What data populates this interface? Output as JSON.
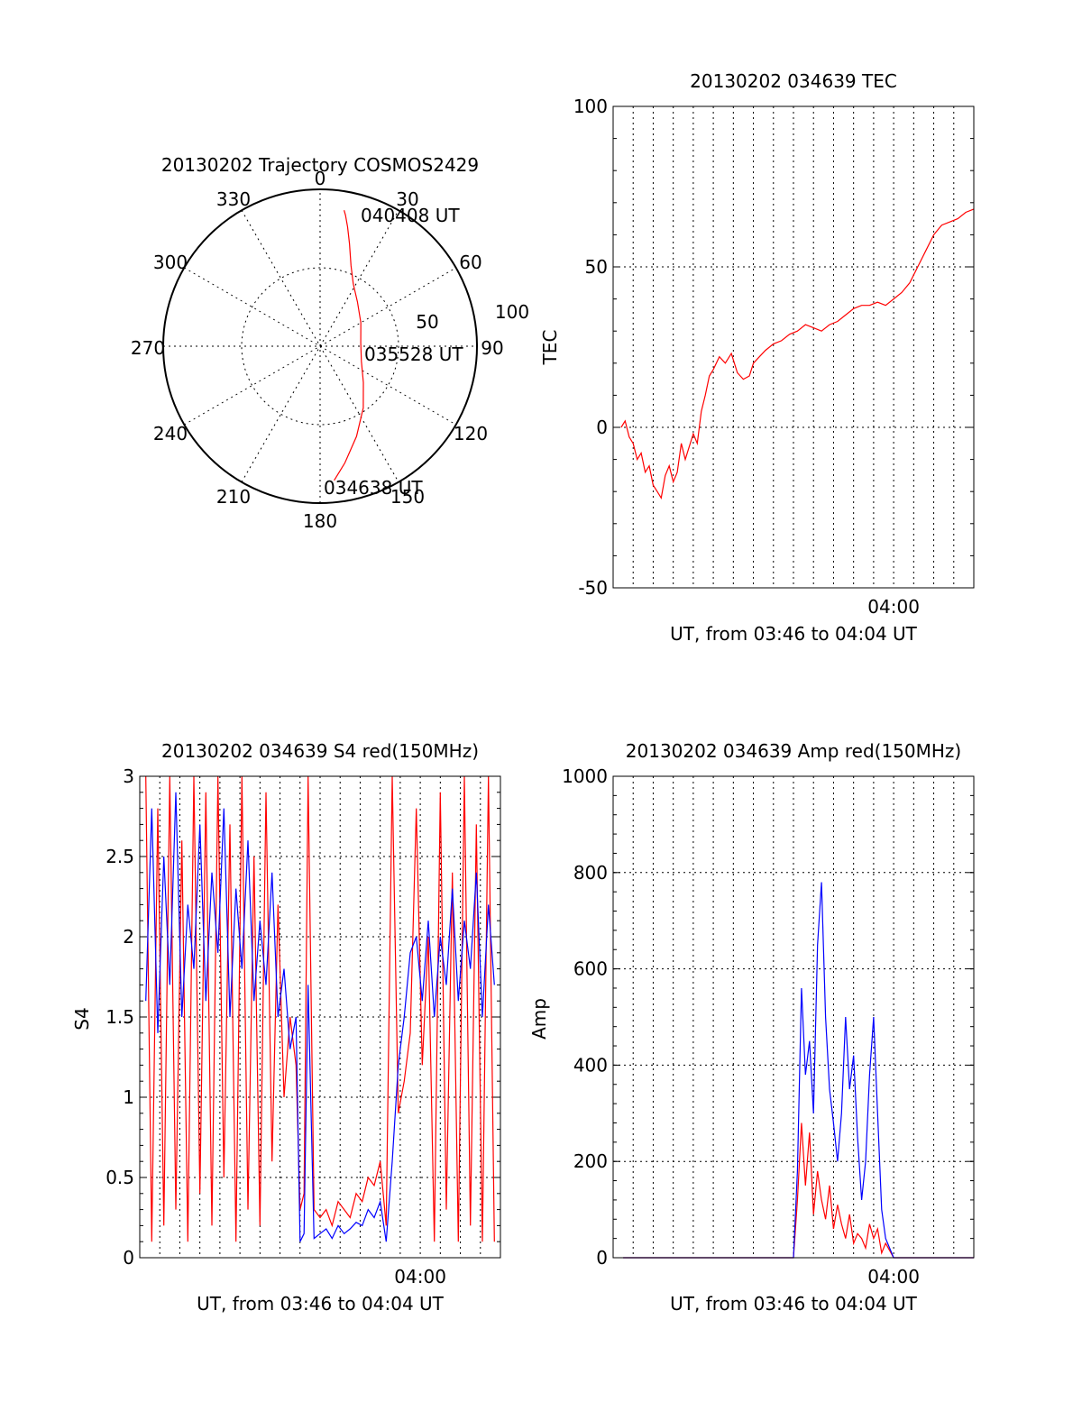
{
  "colors": {
    "red": "#ff0000",
    "blue": "#0000ff",
    "axis": "#000000",
    "grid": "#000000"
  },
  "chart_data": [
    {
      "type": "polar",
      "title": "20130202 Trajectory COSMOS2429",
      "azimuth_labels": [
        "0",
        "30",
        "60",
        "90",
        "120",
        "150",
        "180",
        "210",
        "240",
        "270",
        "300",
        "330"
      ],
      "radial_labels": [
        "50",
        "100"
      ],
      "r_max": 100,
      "grid": true,
      "series": [
        {
          "color": "red",
          "points": [
            {
              "az": 10,
              "r": 88
            },
            {
              "az": 11,
              "r": 85
            },
            {
              "az": 13,
              "r": 78
            },
            {
              "az": 16,
              "r": 68
            },
            {
              "az": 21,
              "r": 55
            },
            {
              "az": 28,
              "r": 45
            },
            {
              "az": 40,
              "r": 37
            },
            {
              "az": 60,
              "r": 30
            },
            {
              "az": 85,
              "r": 26
            },
            {
              "az": 110,
              "r": 28
            },
            {
              "az": 130,
              "r": 36
            },
            {
              "az": 145,
              "r": 48
            },
            {
              "az": 158,
              "r": 62
            },
            {
              "az": 168,
              "r": 76
            },
            {
              "az": 174,
              "r": 86
            }
          ]
        }
      ],
      "annotations": [
        {
          "text": "040408 UT"
        },
        {
          "text": "035528 UT"
        },
        {
          "text": "034638 UT"
        }
      ]
    },
    {
      "type": "line",
      "title": "20130202 034639 TEC",
      "xlabel": "UT, from 03:46 to 04:04 UT",
      "ylabel": "TEC",
      "xlim": [
        0,
        18
      ],
      "ylim": [
        -50,
        100
      ],
      "yticks": [
        -50,
        0,
        50,
        100
      ],
      "xtick_label": {
        "x": 14,
        "label": "04:00"
      },
      "grid": true,
      "series": [
        {
          "color": "red",
          "x": [
            0.4,
            0.6,
            0.8,
            1.0,
            1.2,
            1.4,
            1.6,
            1.8,
            2.0,
            2.2,
            2.4,
            2.6,
            2.8,
            3.0,
            3.2,
            3.4,
            3.6,
            3.8,
            4.0,
            4.2,
            4.4,
            4.6,
            4.8,
            5.0,
            5.3,
            5.6,
            5.9,
            6.2,
            6.5,
            6.8,
            7.0,
            7.3,
            7.6,
            8.0,
            8.4,
            8.8,
            9.2,
            9.6,
            10.0,
            10.4,
            10.8,
            11.2,
            11.6,
            12.0,
            12.4,
            12.8,
            13.2,
            13.6,
            14.0,
            14.4,
            14.8,
            15.2,
            15.6,
            16.0,
            16.4,
            16.8,
            17.2,
            17.6,
            18.0
          ],
          "y": [
            0,
            2,
            -3,
            -5,
            -10,
            -8,
            -14,
            -12,
            -18,
            -20,
            -22,
            -15,
            -12,
            -17,
            -14,
            -5,
            -10,
            -6,
            -2,
            -5,
            5,
            10,
            16,
            18,
            22,
            20,
            23,
            17,
            15,
            16,
            20,
            22,
            24,
            26,
            27,
            29,
            30,
            32,
            31,
            30,
            32,
            33,
            35,
            37,
            38,
            38,
            39,
            38,
            40,
            42,
            45,
            50,
            55,
            60,
            63,
            64,
            65,
            67,
            68
          ]
        }
      ]
    },
    {
      "type": "line",
      "title": "20130202 034639 S4 red(150MHz)",
      "xlabel": "UT, from 03:46 to 04:04 UT",
      "ylabel": "S4",
      "xlim": [
        0,
        18
      ],
      "ylim": [
        0,
        3
      ],
      "yticks": [
        "0",
        "0.5",
        "1",
        "1.5",
        "2",
        "2.5",
        "3"
      ],
      "xtick_label": {
        "x": 14,
        "label": "04:00"
      },
      "grid": true,
      "series": [
        {
          "color": "red",
          "x": [
            0.3,
            0.6,
            0.9,
            1.2,
            1.5,
            1.8,
            2.1,
            2.4,
            2.7,
            3.0,
            3.3,
            3.6,
            3.9,
            4.2,
            4.5,
            4.8,
            5.1,
            5.4,
            5.7,
            6.0,
            6.3,
            6.6,
            6.9,
            7.2,
            7.5,
            7.8,
            8.0,
            8.2,
            8.4,
            8.7,
            9.0,
            9.3,
            9.6,
            9.9,
            10.2,
            10.5,
            10.8,
            11.1,
            11.4,
            11.7,
            12.0,
            12.3,
            12.6,
            12.9,
            13.2,
            13.5,
            13.8,
            14.1,
            14.4,
            14.7,
            15.0,
            15.3,
            15.6,
            15.9,
            16.2,
            16.5,
            16.8,
            17.1,
            17.4,
            17.7
          ],
          "y": [
            3,
            0.1,
            2.8,
            0.2,
            3,
            0.3,
            2.6,
            0.1,
            3,
            0.4,
            2.9,
            0.2,
            3,
            0.5,
            2.7,
            0.1,
            3,
            0.3,
            2.5,
            0.2,
            2.9,
            0.6,
            2.2,
            1.0,
            1.5,
            1.2,
            0.3,
            0.4,
            3.0,
            0.3,
            0.25,
            0.3,
            0.2,
            0.35,
            0.3,
            0.25,
            0.4,
            0.35,
            0.5,
            0.45,
            0.6,
            0.2,
            3.0,
            0.9,
            1.1,
            1.4,
            2.8,
            1.2,
            2.0,
            0.1,
            2.9,
            0.3,
            2.4,
            0.1,
            3.0,
            0.2,
            2.7,
            0.1,
            3.0,
            0.1
          ]
        },
        {
          "color": "blue",
          "x": [
            0.3,
            0.6,
            0.9,
            1.2,
            1.5,
            1.8,
            2.1,
            2.4,
            2.7,
            3.0,
            3.3,
            3.6,
            3.9,
            4.2,
            4.5,
            4.8,
            5.1,
            5.4,
            5.7,
            6.0,
            6.3,
            6.6,
            6.9,
            7.2,
            7.5,
            7.8,
            8.0,
            8.2,
            8.4,
            8.7,
            9.0,
            9.3,
            9.6,
            9.9,
            10.2,
            10.5,
            10.8,
            11.1,
            11.4,
            11.7,
            12.0,
            12.3,
            12.6,
            12.9,
            13.2,
            13.5,
            13.8,
            14.1,
            14.4,
            14.7,
            15.0,
            15.3,
            15.6,
            15.9,
            16.2,
            16.5,
            16.8,
            17.1,
            17.4,
            17.7
          ],
          "y": [
            1.6,
            2.8,
            1.4,
            2.5,
            1.7,
            2.9,
            1.5,
            2.2,
            1.8,
            2.7,
            1.6,
            2.4,
            1.9,
            2.8,
            1.5,
            2.3,
            1.8,
            2.6,
            1.6,
            2.1,
            1.7,
            2.4,
            1.5,
            1.8,
            1.3,
            1.5,
            0.1,
            0.15,
            1.7,
            0.12,
            0.15,
            0.18,
            0.12,
            0.2,
            0.15,
            0.18,
            0.22,
            0.2,
            0.3,
            0.25,
            0.35,
            0.1,
            0.6,
            1.2,
            1.5,
            1.9,
            2.0,
            1.6,
            2.1,
            1.5,
            2.0,
            1.7,
            2.3,
            1.6,
            2.1,
            1.8,
            2.4,
            1.5,
            2.2,
            1.7
          ]
        }
      ]
    },
    {
      "type": "line",
      "title": "20130202 034639 Amp red(150MHz)",
      "xlabel": "UT, from 03:46 to 04:04 UT",
      "ylabel": "Amp",
      "xlim": [
        0,
        18
      ],
      "ylim": [
        0,
        1000
      ],
      "yticks": [
        0,
        200,
        400,
        600,
        800,
        1000
      ],
      "xtick_label": {
        "x": 14,
        "label": "04:00"
      },
      "grid": true,
      "series": [
        {
          "color": "red",
          "x": [
            0.5,
            4,
            8,
            9.0,
            9.2,
            9.4,
            9.6,
            9.8,
            10.0,
            10.2,
            10.4,
            10.6,
            10.8,
            11.0,
            11.2,
            11.4,
            11.6,
            11.8,
            12.0,
            12.2,
            12.4,
            12.6,
            12.8,
            13.0,
            13.2,
            13.4,
            13.6,
            14.0,
            16,
            18
          ],
          "y": [
            0,
            0,
            0,
            0,
            120,
            280,
            150,
            260,
            90,
            180,
            120,
            80,
            150,
            60,
            110,
            70,
            40,
            90,
            30,
            50,
            40,
            20,
            70,
            40,
            60,
            10,
            30,
            0,
            0,
            0
          ]
        },
        {
          "color": "blue",
          "x": [
            0.5,
            4,
            8,
            9.0,
            9.2,
            9.4,
            9.6,
            9.8,
            10.0,
            10.2,
            10.4,
            10.6,
            10.8,
            11.0,
            11.2,
            11.4,
            11.6,
            11.8,
            12.0,
            12.2,
            12.4,
            12.6,
            12.8,
            13.0,
            13.2,
            13.4,
            13.6,
            14.0,
            16,
            18
          ],
          "y": [
            0,
            0,
            0,
            0,
            180,
            560,
            380,
            450,
            300,
            650,
            780,
            500,
            350,
            280,
            200,
            300,
            500,
            350,
            420,
            250,
            120,
            200,
            380,
            500,
            300,
            100,
            40,
            0,
            0,
            0
          ]
        }
      ]
    }
  ]
}
